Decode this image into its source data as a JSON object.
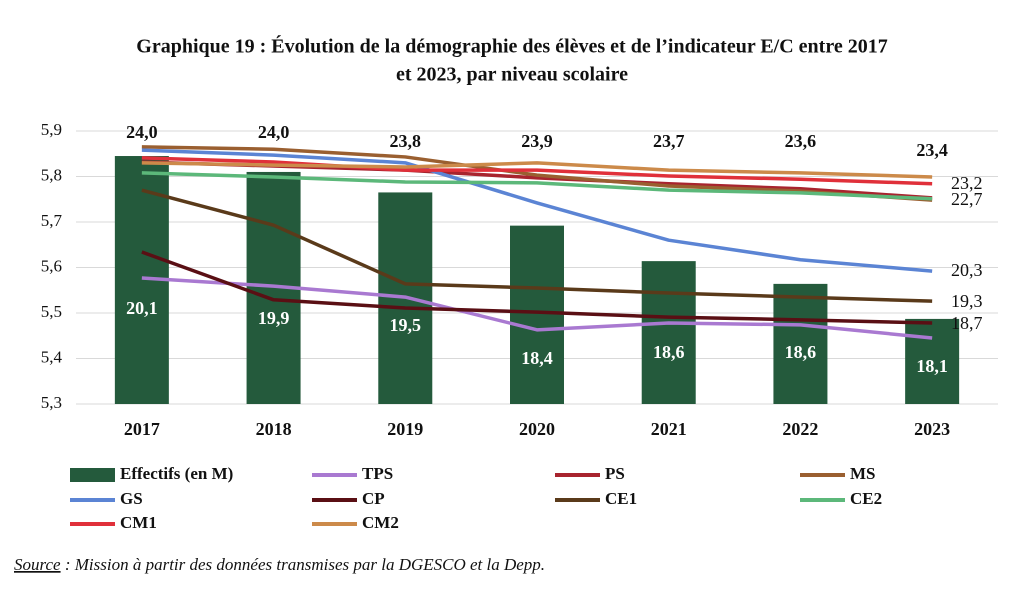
{
  "chart_data": {
    "type": "bar-line",
    "title": [
      "Graphique 19 : Évolution de la démographie des élèves et de l’indicateur E/C entre 2017",
      "et 2023, par niveau scolaire"
    ],
    "categories": [
      "2017",
      "2018",
      "2019",
      "2020",
      "2021",
      "2022",
      "2023"
    ],
    "ylim": [
      5.3,
      5.9
    ],
    "yticks": [
      {
        "value": 5.3,
        "label": "5,3"
      },
      {
        "value": 5.4,
        "label": "5,4"
      },
      {
        "value": 5.5,
        "label": "5,5"
      },
      {
        "value": 5.6,
        "label": "5,6"
      },
      {
        "value": 5.7,
        "label": "5,7"
      },
      {
        "value": 5.8,
        "label": "5,8"
      },
      {
        "value": 5.9,
        "label": "5,9"
      }
    ],
    "grid": true,
    "series": [
      {
        "name": "Effectifs (en M)",
        "type": "bar",
        "color": "#245a3c",
        "values": [
          5.845,
          5.81,
          5.765,
          5.692,
          5.614,
          5.564,
          5.487
        ]
      },
      {
        "name": "TPS",
        "type": "line",
        "color": "#a979d1",
        "values": [
          5.577,
          5.559,
          5.535,
          5.463,
          5.478,
          5.474,
          5.445
        ]
      },
      {
        "name": "PS",
        "type": "line",
        "color": "#a8242e",
        "values": [
          5.832,
          5.823,
          5.814,
          5.797,
          5.784,
          5.773,
          5.753
        ]
      },
      {
        "name": "MS",
        "type": "line",
        "color": "#9a5f30",
        "values": [
          5.865,
          5.86,
          5.843,
          5.803,
          5.779,
          5.768,
          5.748
        ]
      },
      {
        "name": "GS",
        "type": "line",
        "color": "#5b84d4",
        "values": [
          5.858,
          5.847,
          5.83,
          5.742,
          5.66,
          5.617,
          5.592
        ]
      },
      {
        "name": "CP",
        "type": "line",
        "color": "#5a0f14",
        "values": [
          5.634,
          5.529,
          5.511,
          5.502,
          5.491,
          5.485,
          5.478
        ]
      },
      {
        "name": "CE1",
        "type": "line",
        "color": "#5a3a1a",
        "values": [
          5.77,
          5.693,
          5.564,
          5.555,
          5.544,
          5.535,
          5.526
        ]
      },
      {
        "name": "CE2",
        "type": "line",
        "color": "#5cb87a",
        "values": [
          5.808,
          5.799,
          5.788,
          5.786,
          5.77,
          5.764,
          5.751
        ]
      },
      {
        "name": "CM1",
        "type": "line",
        "color": "#e0303a",
        "values": [
          5.841,
          5.832,
          5.814,
          5.814,
          5.801,
          5.794,
          5.784
        ]
      },
      {
        "name": "CM2",
        "type": "line",
        "color": "#cc8a4a",
        "values": [
          5.83,
          5.825,
          5.821,
          5.83,
          5.814,
          5.808,
          5.799
        ]
      }
    ],
    "top_labels": [
      "24,0",
      "24,0",
      "23,8",
      "23,9",
      "23,7",
      "23,6",
      "23,4"
    ],
    "bar_labels": [
      "20,1",
      "19,9",
      "19,5",
      "18,4",
      "18,6",
      "18,6",
      "18,1"
    ],
    "end_labels": [
      "23,2",
      "22,7",
      "20,3",
      "19,3",
      "18,7"
    ],
    "source_label": "Source",
    "source_text": " : Mission à partir des données transmises par la DGESCO et la Depp."
  }
}
